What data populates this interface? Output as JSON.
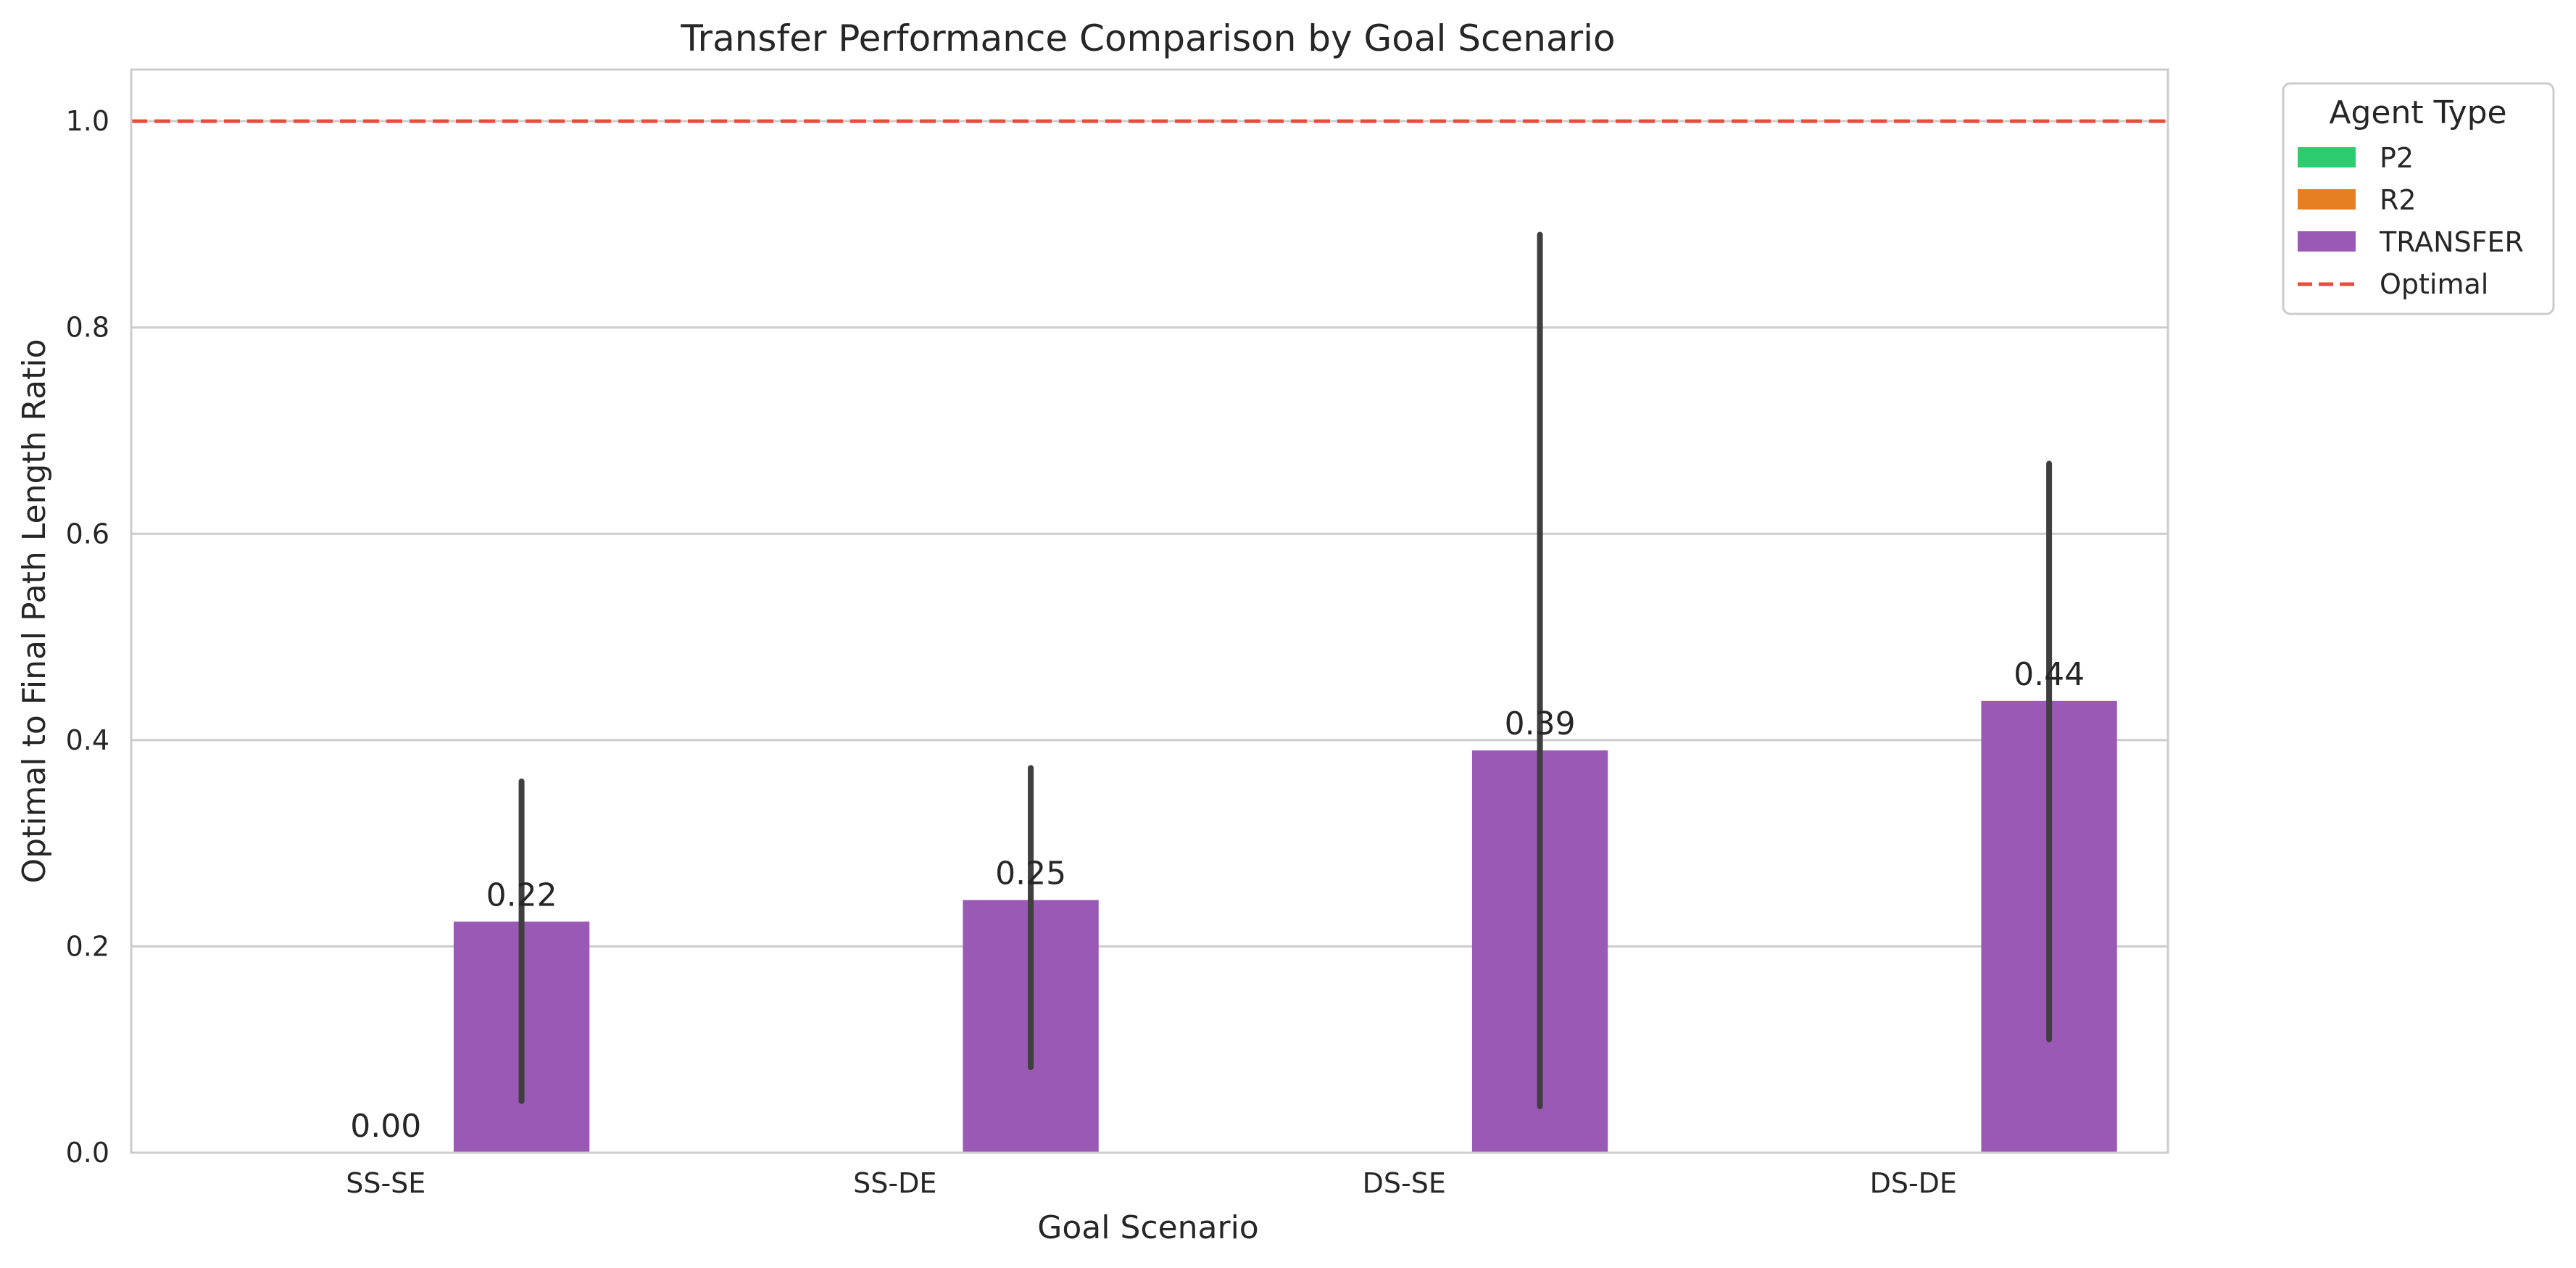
{
  "chart_data": {
    "type": "bar",
    "title": "Transfer Performance Comparison by Goal Scenario",
    "xlabel": "Goal Scenario",
    "ylabel": "Optimal to Final Path Length Ratio",
    "categories": [
      "SS-SE",
      "SS-DE",
      "DS-SE",
      "DS-DE"
    ],
    "ylim": [
      0,
      1.05
    ],
    "yticks": [
      "0.0",
      "0.2",
      "0.4",
      "0.6",
      "0.8",
      "1.0"
    ],
    "grid": "horizontal",
    "series": [
      {
        "name": "P2",
        "color": "#2ecc71",
        "values": [
          null,
          null,
          null,
          null
        ]
      },
      {
        "name": "R2",
        "color": "#e67e22",
        "values": [
          0.0,
          null,
          null,
          null
        ],
        "labels": [
          "0.00",
          null,
          null,
          null
        ]
      },
      {
        "name": "TRANSFER",
        "color": "#9b59b6",
        "values": [
          0.224,
          0.245,
          0.39,
          0.438
        ],
        "labels": [
          "0.22",
          "0.25",
          "0.39",
          "0.44"
        ],
        "error_low": [
          0.05,
          0.083,
          0.045,
          0.11
        ],
        "error_high": [
          0.36,
          0.373,
          0.89,
          0.668
        ]
      }
    ],
    "reference_line": {
      "name": "Optimal",
      "value": 1.0,
      "color": "#e74c3c",
      "style": "dashed"
    },
    "legend": {
      "title": "Agent Type",
      "position": "outside-top-right",
      "entries": [
        "P2",
        "R2",
        "TRANSFER",
        "Optimal"
      ]
    }
  }
}
